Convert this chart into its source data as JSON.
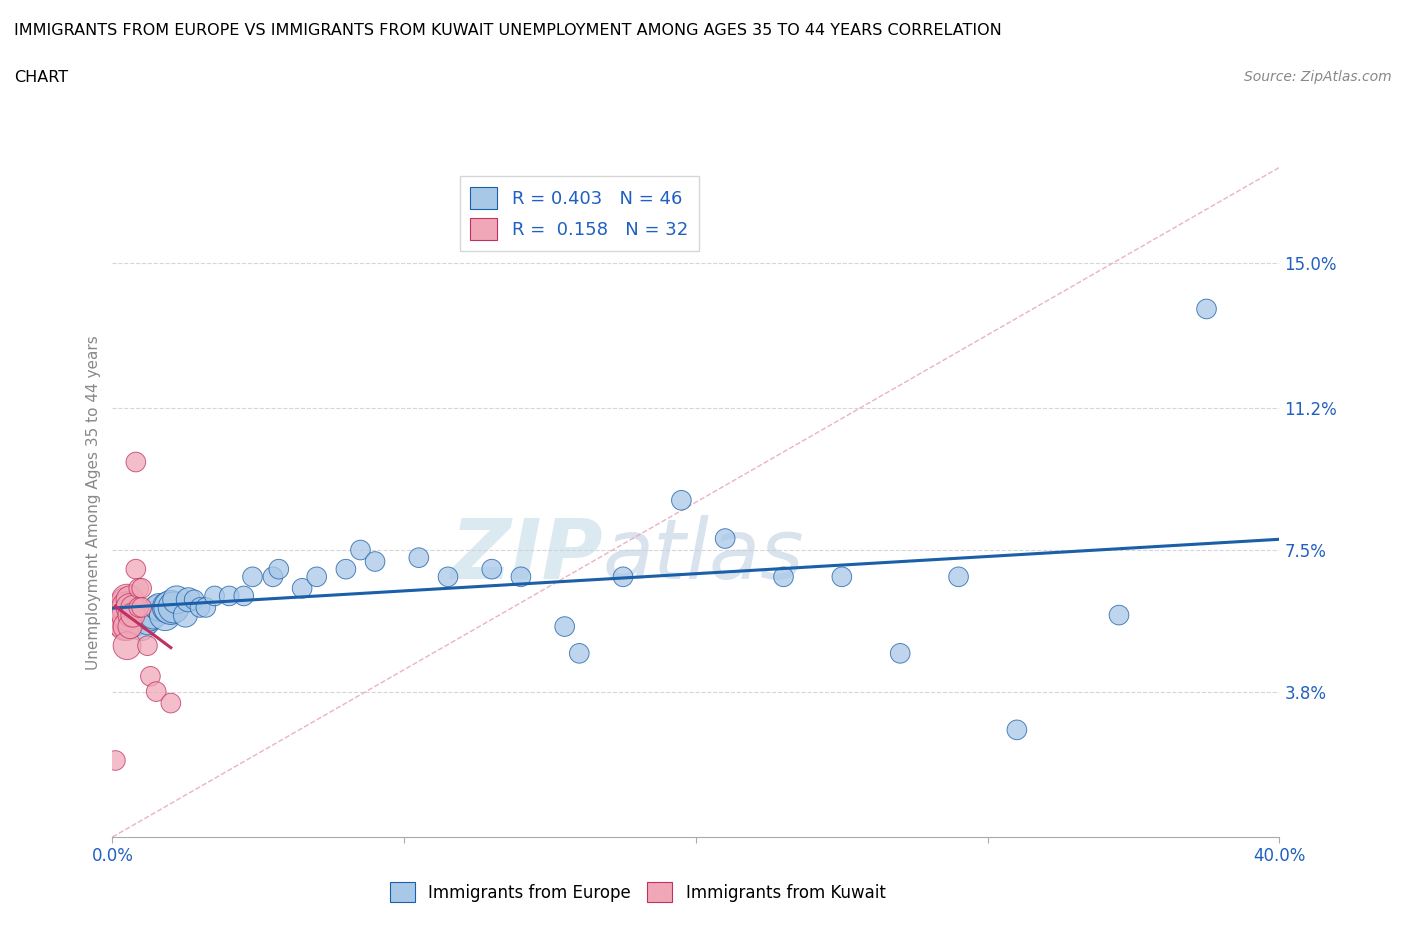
{
  "title_line1": "IMMIGRANTS FROM EUROPE VS IMMIGRANTS FROM KUWAIT UNEMPLOYMENT AMONG AGES 35 TO 44 YEARS CORRELATION",
  "title_line2": "CHART",
  "source": "Source: ZipAtlas.com",
  "ylabel": "Unemployment Among Ages 35 to 44 years",
  "xlim": [
    0.0,
    0.4
  ],
  "ylim": [
    0.0,
    0.175
  ],
  "yticks": [
    0.038,
    0.075,
    0.112,
    0.15
  ],
  "ytick_labels": [
    "3.8%",
    "7.5%",
    "11.2%",
    "15.0%"
  ],
  "xtick_labels_left": "0.0%",
  "xtick_labels_right": "40.0%",
  "color_europe": "#a8c8e8",
  "color_kuwait": "#f0a8b8",
  "color_trendline_europe": "#1a5fa8",
  "color_trendline_kuwait": "#c03060",
  "color_diag": "#e8a0b0",
  "watermark_zip": "ZIP",
  "watermark_atlas": "atlas",
  "europe_x": [
    0.005,
    0.008,
    0.01,
    0.01,
    0.012,
    0.013,
    0.014,
    0.015,
    0.016,
    0.018,
    0.019,
    0.02,
    0.021,
    0.022,
    0.025,
    0.026,
    0.028,
    0.03,
    0.032,
    0.035,
    0.04,
    0.045,
    0.048,
    0.055,
    0.057,
    0.065,
    0.07,
    0.08,
    0.085,
    0.09,
    0.105,
    0.115,
    0.13,
    0.14,
    0.155,
    0.16,
    0.175,
    0.195,
    0.21,
    0.23,
    0.25,
    0.27,
    0.29,
    0.31,
    0.345,
    0.375
  ],
  "europe_y": [
    0.055,
    0.055,
    0.055,
    0.058,
    0.056,
    0.057,
    0.058,
    0.06,
    0.06,
    0.058,
    0.06,
    0.06,
    0.06,
    0.062,
    0.058,
    0.062,
    0.062,
    0.06,
    0.06,
    0.063,
    0.063,
    0.063,
    0.068,
    0.068,
    0.07,
    0.065,
    0.068,
    0.07,
    0.075,
    0.072,
    0.073,
    0.068,
    0.07,
    0.068,
    0.055,
    0.048,
    0.068,
    0.088,
    0.078,
    0.068,
    0.068,
    0.048,
    0.068,
    0.028,
    0.058,
    0.138
  ],
  "europe_size": [
    200,
    200,
    400,
    400,
    300,
    300,
    400,
    300,
    400,
    500,
    500,
    600,
    500,
    400,
    300,
    300,
    200,
    200,
    200,
    200,
    200,
    200,
    200,
    200,
    200,
    200,
    200,
    200,
    200,
    200,
    200,
    200,
    200,
    200,
    200,
    200,
    200,
    200,
    200,
    200,
    200,
    200,
    200,
    200,
    200,
    200
  ],
  "kuwait_x": [
    0.001,
    0.002,
    0.002,
    0.003,
    0.003,
    0.003,
    0.004,
    0.004,
    0.004,
    0.004,
    0.004,
    0.005,
    0.005,
    0.005,
    0.005,
    0.005,
    0.006,
    0.006,
    0.006,
    0.006,
    0.007,
    0.007,
    0.008,
    0.008,
    0.009,
    0.009,
    0.01,
    0.01,
    0.012,
    0.013,
    0.015,
    0.02
  ],
  "kuwait_y": [
    0.02,
    0.055,
    0.06,
    0.062,
    0.058,
    0.058,
    0.062,
    0.06,
    0.058,
    0.058,
    0.055,
    0.062,
    0.06,
    0.058,
    0.055,
    0.05,
    0.062,
    0.06,
    0.058,
    0.055,
    0.06,
    0.058,
    0.098,
    0.07,
    0.065,
    0.06,
    0.065,
    0.06,
    0.05,
    0.042,
    0.038,
    0.035
  ],
  "kuwait_size": [
    200,
    200,
    300,
    200,
    200,
    200,
    300,
    300,
    600,
    500,
    400,
    500,
    500,
    500,
    400,
    400,
    400,
    400,
    300,
    300,
    300,
    300,
    200,
    200,
    200,
    200,
    200,
    200,
    200,
    200,
    200,
    200
  ]
}
